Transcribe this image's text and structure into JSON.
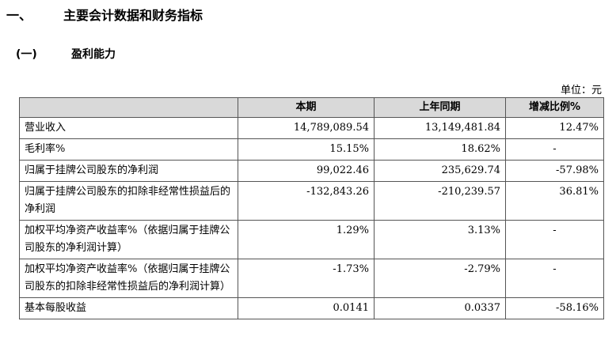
{
  "heading1": {
    "number": "一、",
    "title": "主要会计数据和财务指标"
  },
  "heading2": {
    "number": "(一)",
    "title": "盈利能力"
  },
  "unit": "单位：元",
  "table": {
    "headers": [
      "",
      "本期",
      "上年同期",
      "增减比例%"
    ],
    "rows": [
      {
        "label": "营业收入",
        "current": "14,789,089.54",
        "previous": "13,149,481.84",
        "change": "12.47%"
      },
      {
        "label": "毛利率%",
        "current": "15.15%",
        "previous": "18.62%",
        "change": "-"
      },
      {
        "label": "归属于挂牌公司股东的净利润",
        "current": "99,022.46",
        "previous": "235,629.74",
        "change": "-57.98%"
      },
      {
        "label": "归属于挂牌公司股东的扣除非经常性损益后的净利润",
        "current": "-132,843.26",
        "previous": "-210,239.57",
        "change": "36.81%"
      },
      {
        "label": "加权平均净资产收益率%（依据归属于挂牌公司股东的净利润计算）",
        "current": "1.29%",
        "previous": "3.13%",
        "change": "-"
      },
      {
        "label": "加权平均净资产收益率%（依据归属于挂牌公司股东的扣除非经常性损益后的净利润计算）",
        "current": "-1.73%",
        "previous": "-2.79%",
        "change": "-"
      },
      {
        "label": "基本每股收益",
        "current": "0.0141",
        "previous": "0.0337",
        "change": "-58.16%"
      }
    ]
  }
}
